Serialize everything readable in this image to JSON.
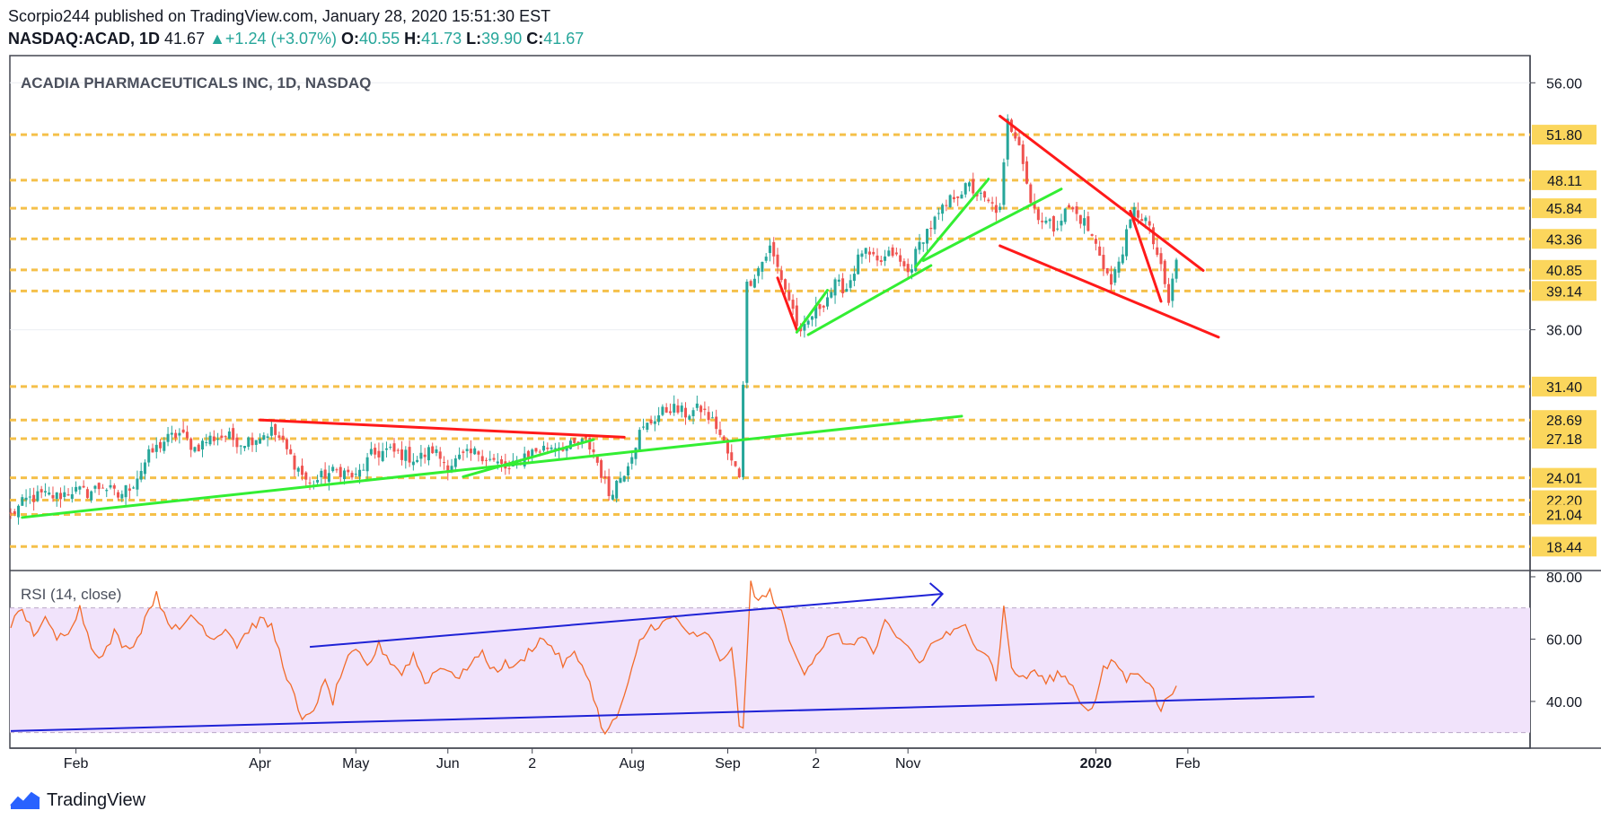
{
  "header": {
    "published": "Scorpio244 published on TradingView.com, January 28, 2020 15:51:30 EST",
    "symbol": "NASDAQ:ACAD, 1D",
    "last": "41.67",
    "change": "+1.24 (+3.07%)",
    "o_label": "O:",
    "o": "40.55",
    "h_label": "H:",
    "h": "41.73",
    "l_label": "L:",
    "l": "39.90",
    "c_label": "C:",
    "c": "41.67",
    "up_arrow": "▲"
  },
  "footer": {
    "brand": "TradingView",
    "icon": "tradingview-logo-icon"
  },
  "colors": {
    "up": "#26a69a",
    "down": "#ef5350",
    "level": "#f5c04a",
    "trend_red": "#ff1a1a",
    "trend_green": "#33ee33",
    "rsi": "#f26b2a",
    "rsi_band": "#f1e3fb",
    "rsi_line_blue": "#1e22d6"
  },
  "chart_data": [
    {
      "type": "candlestick",
      "title": "ACADIA PHARMACEUTICALS INC, 1D, NASDAQ",
      "ylim": [
        16.5,
        58.2
      ],
      "y_ticks": [
        "56.00",
        "36.00"
      ],
      "x_ticks": [
        "Feb",
        "Apr",
        "May",
        "Jun",
        "2",
        "Aug",
        "Sep",
        "2",
        "Nov",
        "2020",
        "Feb"
      ],
      "x_tick_bold": [
        false,
        false,
        false,
        false,
        false,
        false,
        false,
        false,
        false,
        true,
        false
      ],
      "price_levels": [
        51.8,
        48.11,
        45.84,
        43.36,
        40.85,
        39.14,
        31.4,
        28.69,
        27.18,
        24.01,
        22.2,
        21.04,
        18.44
      ],
      "price_level_labels": [
        "51.80",
        "48.11",
        "45.84",
        "43.36",
        "40.85",
        "39.14",
        "31.40",
        "28.69",
        "27.18",
        "24.01",
        "22.20",
        "21.04",
        "18.44"
      ],
      "close_path": [
        [
          0,
          21.0
        ],
        [
          4,
          22.2
        ],
        [
          8,
          22.6
        ],
        [
          12,
          22.5
        ],
        [
          16,
          23.0
        ],
        [
          20,
          22.8
        ],
        [
          24,
          23.4
        ],
        [
          28,
          22.5
        ],
        [
          32,
          23.6
        ],
        [
          36,
          25.8
        ],
        [
          40,
          27.0
        ],
        [
          44,
          27.6
        ],
        [
          48,
          26.4
        ],
        [
          52,
          27.2
        ],
        [
          56,
          27.4
        ],
        [
          60,
          26.9
        ],
        [
          64,
          27.3
        ],
        [
          68,
          27.8
        ],
        [
          70,
          27.2
        ],
        [
          74,
          25.2
        ],
        [
          78,
          23.4
        ],
        [
          82,
          24.3
        ],
        [
          86,
          24.6
        ],
        [
          90,
          24.0
        ],
        [
          94,
          25.8
        ],
        [
          98,
          26.2
        ],
        [
          102,
          25.9
        ],
        [
          106,
          25.5
        ],
        [
          110,
          26.3
        ],
        [
          114,
          25.0
        ],
        [
          118,
          25.7
        ],
        [
          122,
          26.1
        ],
        [
          126,
          25.3
        ],
        [
          130,
          24.6
        ],
        [
          134,
          25.9
        ],
        [
          138,
          26.3
        ],
        [
          142,
          26.7
        ],
        [
          146,
          26.5
        ],
        [
          150,
          26.9
        ],
        [
          152,
          26.1
        ],
        [
          156,
          22.7
        ],
        [
          160,
          24.6
        ],
        [
          164,
          27.6
        ],
        [
          168,
          28.9
        ],
        [
          172,
          29.7
        ],
        [
          176,
          29.2
        ],
        [
          180,
          29.6
        ],
        [
          184,
          28.2
        ],
        [
          188,
          25.2
        ],
        [
          190,
          24.3
        ],
        [
          192,
          39.6
        ],
        [
          195,
          41.0
        ],
        [
          198,
          42.6
        ],
        [
          201,
          40.2
        ],
        [
          204,
          37.6
        ],
        [
          206,
          35.4
        ],
        [
          209,
          37.2
        ],
        [
          212,
          38.3
        ],
        [
          215,
          39.6
        ],
        [
          218,
          39.4
        ],
        [
          222,
          42.4
        ],
        [
          226,
          41.3
        ],
        [
          230,
          42.2
        ],
        [
          234,
          40.6
        ],
        [
          238,
          43.6
        ],
        [
          242,
          45.2
        ],
        [
          246,
          46.9
        ],
        [
          250,
          47.6
        ],
        [
          254,
          46.4
        ],
        [
          258,
          45.6
        ],
        [
          260,
          52.8
        ],
        [
          263,
          51.4
        ],
        [
          266,
          46.3
        ],
        [
          269,
          44.9
        ],
        [
          272,
          44.3
        ],
        [
          276,
          45.9
        ],
        [
          280,
          44.7
        ],
        [
          284,
          42.2
        ],
        [
          287,
          39.6
        ],
        [
          290,
          42.6
        ],
        [
          293,
          45.6
        ],
        [
          296,
          44.9
        ],
        [
          299,
          42.1
        ],
        [
          302,
          38.2
        ],
        [
          304,
          41.67
        ]
      ],
      "trendlines_red": [
        [
          [
            65,
            28.7
          ],
          [
            160,
            27.3
          ]
        ],
        [
          [
            200,
            40.2
          ],
          [
            205,
            36.0
          ]
        ],
        [
          [
            258,
            53.3
          ],
          [
            311,
            40.8
          ]
        ],
        [
          [
            258,
            42.8
          ],
          [
            315,
            35.4
          ]
        ],
        [
          [
            292,
            45.6
          ],
          [
            300,
            38.3
          ]
        ]
      ],
      "trendlines_green": [
        [
          [
            3,
            20.8
          ],
          [
            248,
            29.0
          ]
        ],
        [
          [
            118,
            24.1
          ],
          [
            152,
            27.1
          ]
        ],
        [
          [
            205,
            35.8
          ],
          [
            213,
            39.2
          ]
        ],
        [
          [
            208,
            35.6
          ],
          [
            240,
            41.2
          ]
        ],
        [
          [
            236,
            41.1
          ],
          [
            255,
            48.2
          ]
        ],
        [
          [
            238,
            41.6
          ],
          [
            274,
            47.4
          ]
        ]
      ]
    },
    {
      "type": "line",
      "title": "RSI (14, close)",
      "ylim": [
        25,
        82
      ],
      "y_ticks": [
        "80.00",
        "60.00",
        "40.00"
      ],
      "band": [
        30,
        70
      ],
      "x_index_max": 304,
      "values": [
        [
          0,
          65
        ],
        [
          3,
          69
        ],
        [
          6,
          62
        ],
        [
          9,
          66
        ],
        [
          12,
          60
        ],
        [
          15,
          63
        ],
        [
          18,
          70
        ],
        [
          21,
          58
        ],
        [
          24,
          54
        ],
        [
          27,
          62
        ],
        [
          30,
          57
        ],
        [
          33,
          60
        ],
        [
          36,
          70
        ],
        [
          38,
          74
        ],
        [
          41,
          66
        ],
        [
          44,
          62
        ],
        [
          47,
          68
        ],
        [
          50,
          64
        ],
        [
          53,
          60
        ],
        [
          56,
          64
        ],
        [
          59,
          58
        ],
        [
          62,
          63
        ],
        [
          65,
          66
        ],
        [
          68,
          64
        ],
        [
          71,
          52
        ],
        [
          74,
          41
        ],
        [
          76,
          33
        ],
        [
          79,
          38
        ],
        [
          82,
          46
        ],
        [
          84,
          40
        ],
        [
          87,
          52
        ],
        [
          90,
          56
        ],
        [
          93,
          51
        ],
        [
          96,
          58
        ],
        [
          99,
          53
        ],
        [
          102,
          49
        ],
        [
          105,
          55
        ],
        [
          108,
          46
        ],
        [
          111,
          50
        ],
        [
          114,
          51
        ],
        [
          117,
          47
        ],
        [
          120,
          53
        ],
        [
          123,
          55
        ],
        [
          126,
          50
        ],
        [
          129,
          52
        ],
        [
          132,
          51
        ],
        [
          135,
          56
        ],
        [
          138,
          60
        ],
        [
          141,
          58
        ],
        [
          144,
          52
        ],
        [
          147,
          55
        ],
        [
          150,
          50
        ],
        [
          153,
          37
        ],
        [
          155,
          29
        ],
        [
          158,
          35
        ],
        [
          161,
          45
        ],
        [
          164,
          59
        ],
        [
          167,
          64
        ],
        [
          170,
          65
        ],
        [
          173,
          67
        ],
        [
          176,
          63
        ],
        [
          179,
          60
        ],
        [
          182,
          62
        ],
        [
          185,
          52
        ],
        [
          188,
          58
        ],
        [
          190,
          33
        ],
        [
          191,
          30
        ],
        [
          193,
          78
        ],
        [
          195,
          72
        ],
        [
          198,
          75
        ],
        [
          201,
          68
        ],
        [
          204,
          56
        ],
        [
          207,
          50
        ],
        [
          210,
          55
        ],
        [
          213,
          60
        ],
        [
          216,
          61
        ],
        [
          219,
          57
        ],
        [
          222,
          62
        ],
        [
          225,
          55
        ],
        [
          228,
          65
        ],
        [
          231,
          60
        ],
        [
          234,
          58
        ],
        [
          237,
          52
        ],
        [
          240,
          58
        ],
        [
          243,
          61
        ],
        [
          246,
          62
        ],
        [
          249,
          64
        ],
        [
          252,
          58
        ],
        [
          255,
          55
        ],
        [
          257,
          47
        ],
        [
          259,
          70
        ],
        [
          261,
          51
        ],
        [
          264,
          47
        ],
        [
          267,
          50
        ],
        [
          270,
          46
        ],
        [
          273,
          49
        ],
        [
          276,
          47
        ],
        [
          279,
          40
        ],
        [
          282,
          37
        ],
        [
          285,
          50
        ],
        [
          288,
          53
        ],
        [
          291,
          47
        ],
        [
          294,
          50
        ],
        [
          297,
          46
        ],
        [
          299,
          40
        ],
        [
          300,
          37
        ],
        [
          302,
          42
        ],
        [
          304,
          45
        ]
      ],
      "trendlines_blue": [
        [
          [
            78,
            57.5
          ],
          [
            243,
            74.5
          ]
        ],
        [
          [
            0,
            30.5
          ],
          [
            340,
            41.5
          ]
        ]
      ]
    }
  ]
}
